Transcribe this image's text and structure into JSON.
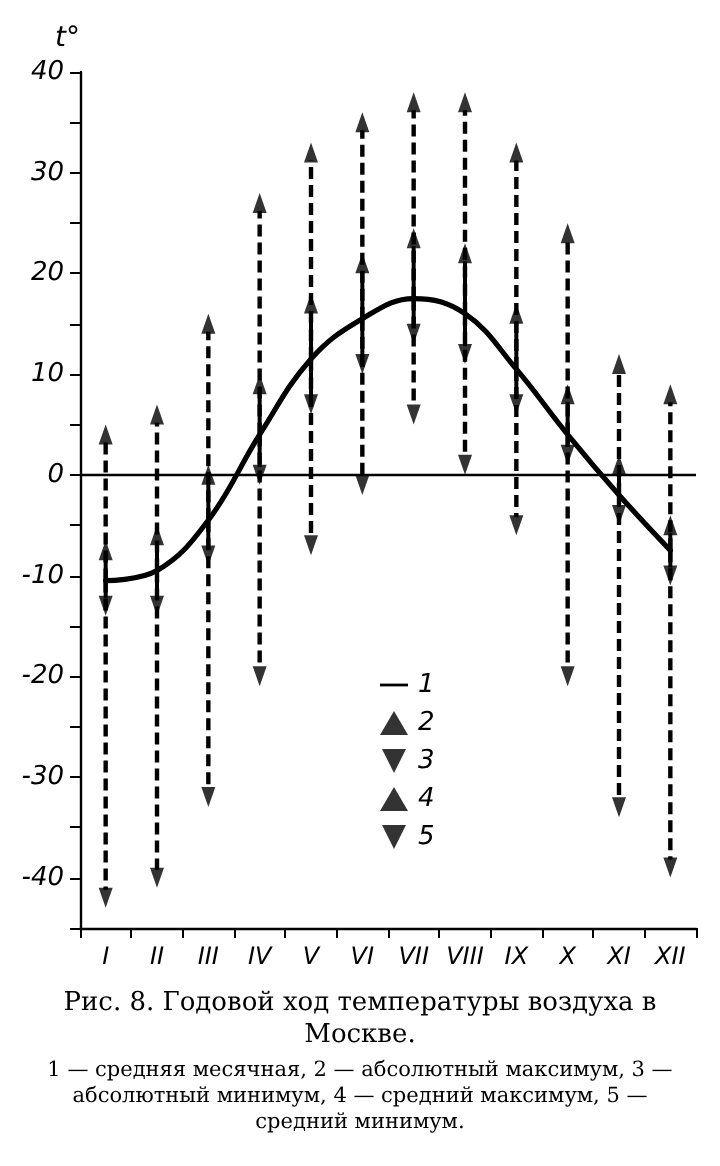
{
  "chart_data": {
    "type": "line",
    "title": "Рис. 8. Годовой ход температуры воздуха в Москве.",
    "annotations": [
      "1 — средняя месячная, 2 — абсолютный максимум, 3 — абсолютный минимум, 4 — средний максимум, 5 — средний минимум."
    ],
    "ylabel": "t°",
    "categories": [
      "I",
      "II",
      "III",
      "IV",
      "V",
      "VI",
      "VII",
      "VIII",
      "IX",
      "X",
      "XI",
      "XII"
    ],
    "series": [
      {
        "name": "1",
        "color": "#000000",
        "line_style": "solid",
        "values": [
          -10.5,
          -9.5,
          -4.5,
          4,
          11.5,
          15.5,
          17.5,
          16,
          10.5,
          4,
          -2,
          -7.5
        ]
      },
      {
        "name": "2",
        "type": "scatter",
        "color": "#000000",
        "marker": "triangle",
        "line_style": "dashed",
        "values": [
          4,
          6,
          15,
          27,
          32,
          35,
          37,
          37,
          32,
          24,
          11,
          8
        ]
      },
      {
        "name": "3",
        "type": "scatter",
        "color": "#000000",
        "marker": "triangle",
        "line_style": "dashed",
        "values": [
          -42,
          -40,
          -32,
          -20,
          -7,
          -1,
          6,
          1,
          -5,
          -20,
          -33,
          -39
        ]
      },
      {
        "name": "4",
        "type": "scatter",
        "color": "#000000",
        "marker": "triangle",
        "line_style": "solid",
        "values": [
          -7.5,
          -6,
          0,
          9,
          17,
          21,
          23.5,
          22,
          16,
          8,
          1,
          -5
        ]
      },
      {
        "name": "5",
        "type": "scatter",
        "color": "#000000",
        "marker": "triangle",
        "line_style": "solid",
        "values": [
          -13,
          -13,
          -8,
          0,
          7,
          11,
          14,
          12,
          7,
          2,
          -4,
          -10
        ]
      }
    ],
    "ylim": [
      -45,
      40
    ],
    "yticks": [
      {
        "value": -45,
        "label": null
      },
      -40,
      {
        "value": -35,
        "label": null
      },
      -30,
      {
        "value": -25,
        "label": null
      },
      -20,
      {
        "value": -15,
        "label": null
      },
      -10,
      {
        "value": -5,
        "label": null
      },
      0,
      {
        "value": 5,
        "label": null
      },
      10,
      {
        "value": 15,
        "label": null
      },
      20,
      {
        "value": 25,
        "label": null
      },
      30,
      {
        "value": 35,
        "label": null
      },
      40
    ],
    "ref_lines": [
      {
        "axis": "y",
        "value": 0,
        "color": "#000000"
      }
    ],
    "grid": false,
    "legend": "bottom"
  }
}
